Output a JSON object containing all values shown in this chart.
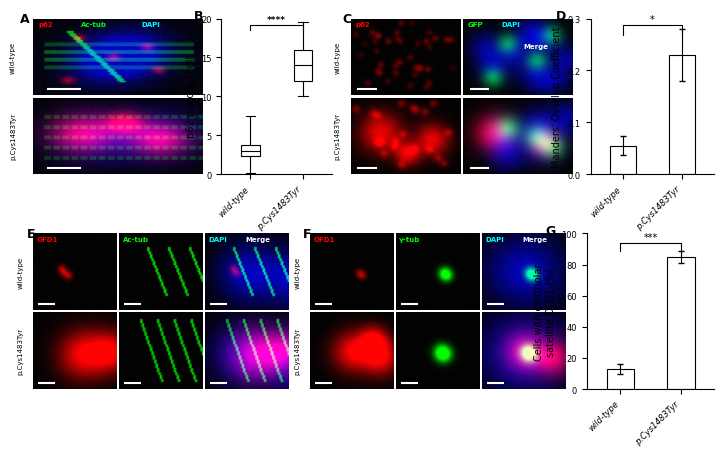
{
  "panel_B": {
    "ylabel": "p62 puncta / cell",
    "categories": [
      "wild-type",
      "p.Cys1483Tyr"
    ],
    "box1": {
      "median": 3.0,
      "q1": 2.3,
      "q3": 3.8,
      "whisker_low": 0.2,
      "whisker_high": 7.5
    },
    "box2": {
      "median": 14.0,
      "q1": 12.0,
      "q3": 16.0,
      "whisker_low": 10.0,
      "whisker_high": 19.5
    },
    "ylim": [
      0,
      20
    ],
    "yticks": [
      0,
      5,
      10,
      15,
      20
    ],
    "significance": "****"
  },
  "panel_D": {
    "ylabel": "Manders' Overlap Coefficient",
    "categories": [
      "wild-type",
      "p.Cys1483Tyr"
    ],
    "values": [
      0.055,
      0.23
    ],
    "errors": [
      0.018,
      0.05
    ],
    "ylim": [
      0,
      0.3
    ],
    "yticks": [
      0.0,
      0.1,
      0.2,
      0.3
    ],
    "significance": "*"
  },
  "panel_G": {
    "ylabel": "Cells with centriolar\nsatellite OFD1 (%)",
    "categories": [
      "wild-type",
      "p.Cys1483Tyr"
    ],
    "values": [
      13,
      85
    ],
    "errors": [
      3,
      4
    ],
    "ylim": [
      0,
      100
    ],
    "yticks": [
      0,
      20,
      40,
      60,
      80,
      100
    ],
    "significance": "***"
  },
  "bg_color": "white",
  "label_fontsize": 7,
  "tick_fontsize": 6,
  "panel_label_fontsize": 9
}
